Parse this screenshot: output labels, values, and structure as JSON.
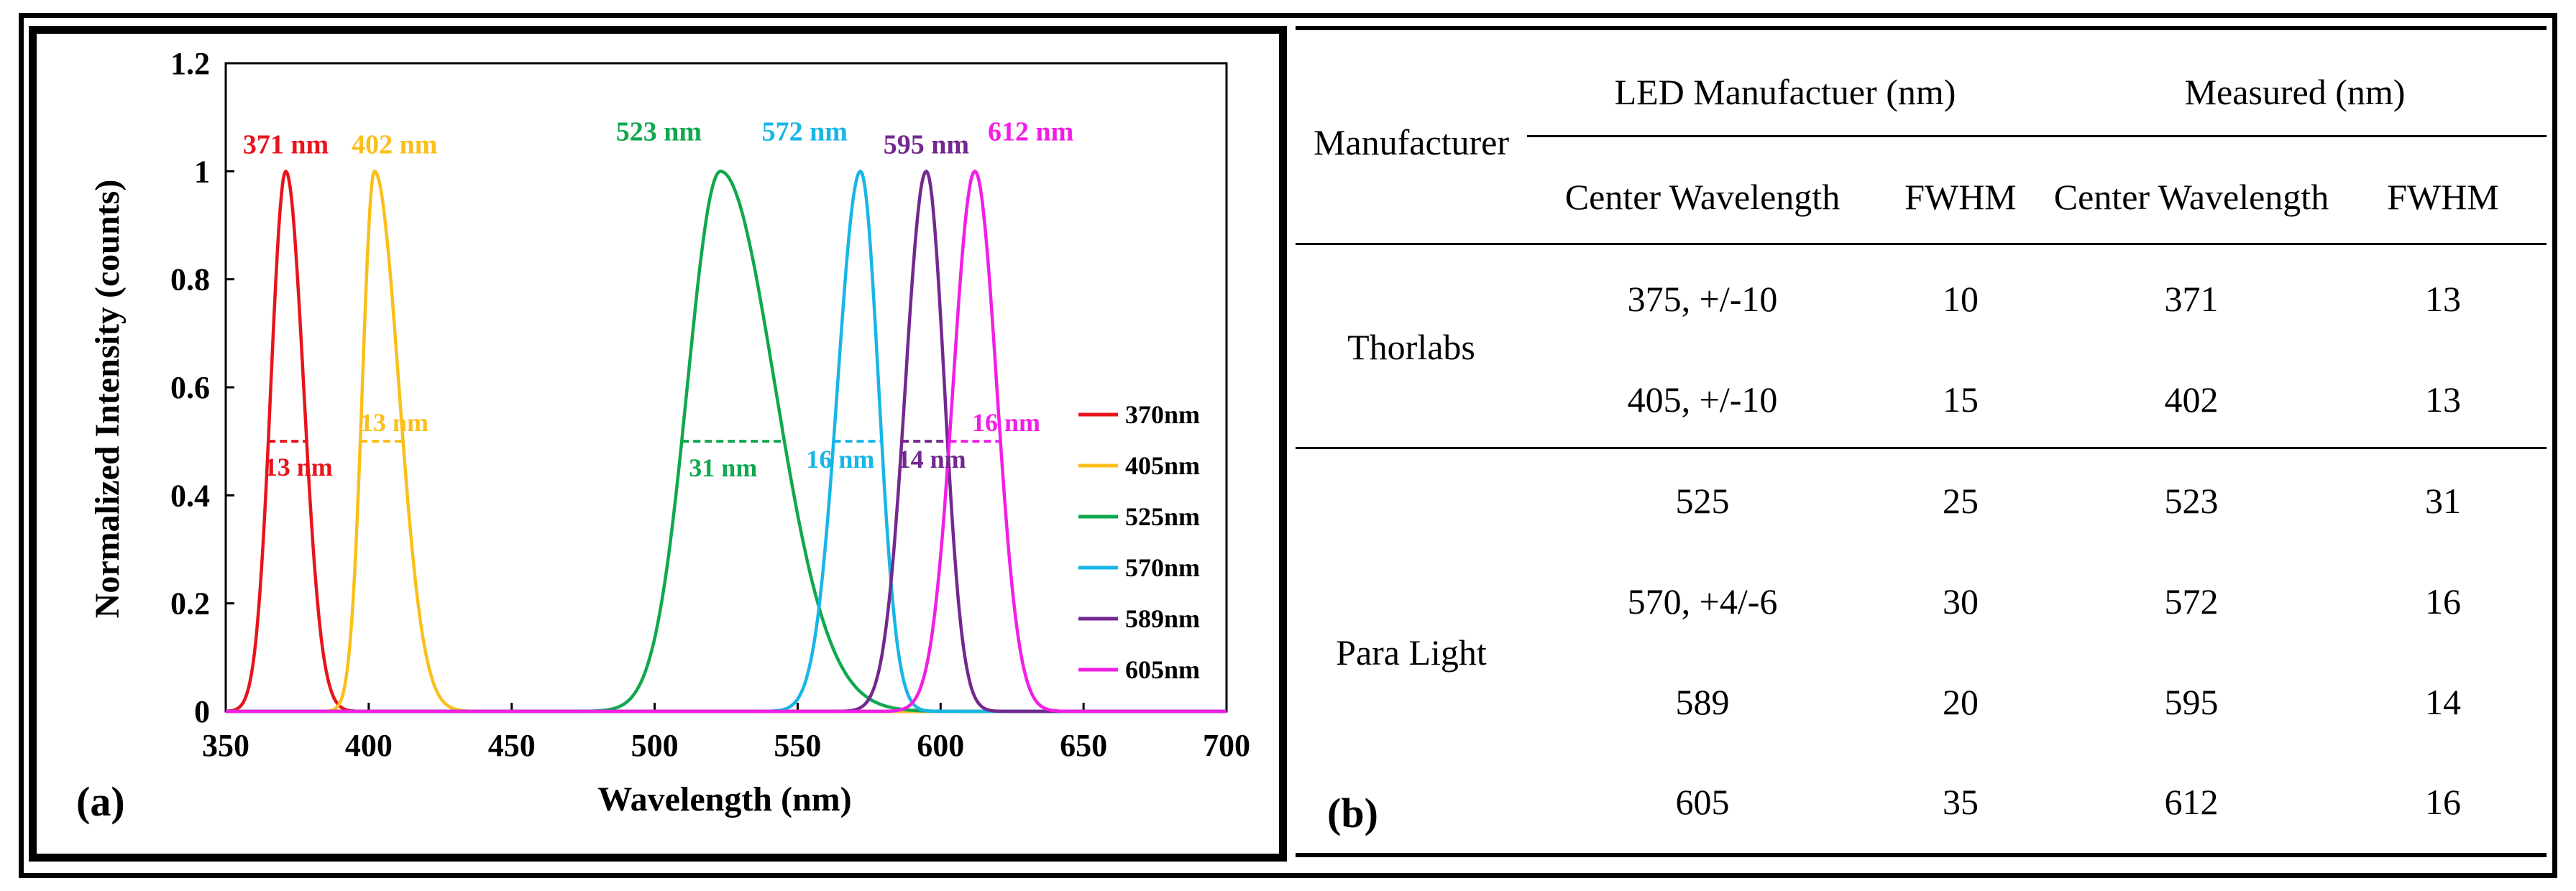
{
  "chart_data": {
    "type": "line",
    "panel_label": "(a)",
    "xlabel": "Wavelength (nm)",
    "ylabel": "Normalized Intensity (counts)",
    "xlim": [
      350,
      700
    ],
    "ylim": [
      0,
      1.2
    ],
    "xticks": [
      "350",
      "400",
      "450",
      "500",
      "550",
      "600",
      "650",
      "700"
    ],
    "yticks": [
      "0",
      "0.2",
      "0.4",
      "0.6",
      "0.8",
      "1",
      "1.2"
    ],
    "legend_position": "right",
    "series": [
      {
        "name": "370nm",
        "color": "#e8141c",
        "peak": 371,
        "fwhm": 13,
        "sigma_left": 5.2,
        "sigma_right": 6.2,
        "peak_label": "371 nm",
        "fwhm_label": "13 nm"
      },
      {
        "name": "405nm",
        "color": "#fbbf1a",
        "peak": 402,
        "fwhm": 13,
        "sigma_left": 4.2,
        "sigma_right": 8.5,
        "peak_label": "402 nm",
        "fwhm_label": "13 nm"
      },
      {
        "name": "525nm",
        "color": "#10a84e",
        "peak": 523,
        "fwhm": 31,
        "sigma_left": 11.5,
        "sigma_right": 19.0,
        "peak_label": "523 nm",
        "fwhm_label": "31 nm"
      },
      {
        "name": "570nm",
        "color": "#18b6e6",
        "peak": 572,
        "fwhm": 16,
        "sigma_left": 8.0,
        "sigma_right": 6.3,
        "peak_label": "572 nm",
        "fwhm_label": "16 nm"
      },
      {
        "name": "589nm",
        "color": "#73288f",
        "peak": 595,
        "fwhm": 14,
        "sigma_left": 7.3,
        "sigma_right": 6.3,
        "peak_label": "595 nm",
        "fwhm_label": "14 nm"
      },
      {
        "name": "605nm",
        "color": "#f21ee6",
        "peak": 612,
        "fwhm": 16,
        "sigma_left": 7.6,
        "sigma_right": 7.6,
        "peak_label": "612 nm",
        "fwhm_label": "16 nm"
      }
    ]
  },
  "table": {
    "panel_label": "(b)",
    "header_manufacturer": "Manufacturer",
    "group_led": "LED Manufactuer (nm)",
    "group_measured": "Measured (nm)",
    "col_center_1": "Center Wavelength",
    "col_fwhm_1": "FWHM",
    "col_center_2": "Center Wavelength",
    "col_fwhm_2": "FWHM",
    "groups": [
      {
        "manufacturer": "Thorlabs",
        "rows": [
          {
            "led_center": "375, +/-10",
            "led_fwhm": "10",
            "meas_center": "371",
            "meas_fwhm": "13"
          },
          {
            "led_center": "405, +/-10",
            "led_fwhm": "15",
            "meas_center": "402",
            "meas_fwhm": "13"
          }
        ]
      },
      {
        "manufacturer": "Para Light",
        "rows": [
          {
            "led_center": "525",
            "led_fwhm": "25",
            "meas_center": "523",
            "meas_fwhm": "31"
          },
          {
            "led_center": "570, +4/-6",
            "led_fwhm": "30",
            "meas_center": "572",
            "meas_fwhm": "16"
          },
          {
            "led_center": "589",
            "led_fwhm": "20",
            "meas_center": "595",
            "meas_fwhm": "14"
          },
          {
            "led_center": "605",
            "led_fwhm": "35",
            "meas_center": "612",
            "meas_fwhm": "16"
          }
        ]
      }
    ]
  }
}
